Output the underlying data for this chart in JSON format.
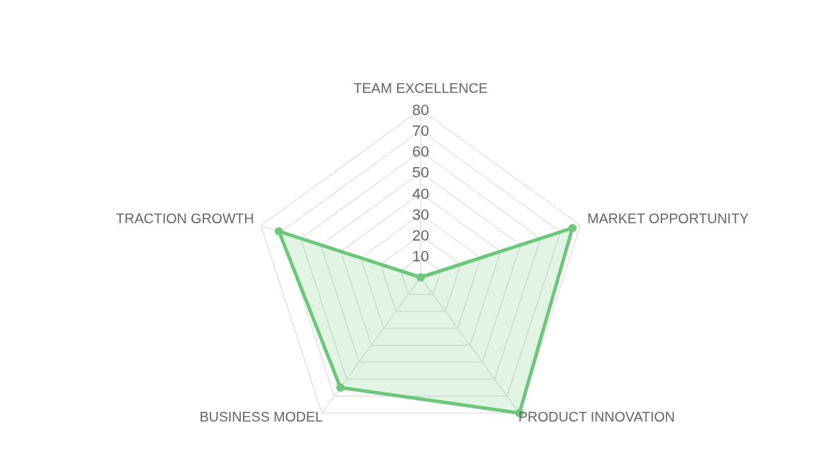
{
  "chart_data": {
    "type": "radar",
    "categories": [
      "TEAM EXCELLENCE",
      "MARKET OPPORTUNITY",
      "PRODUCT INNOVATION",
      "BUSINESS MODEL",
      "TRACTION GROWTH"
    ],
    "series": [
      {
        "color": "#6cc77a",
        "values": [
          0,
          76,
          80,
          65,
          71
        ]
      }
    ],
    "ylim": [
      0,
      80
    ],
    "yticks": [
      10,
      20,
      30,
      40,
      50,
      60,
      70,
      80
    ],
    "grid": true,
    "marker": "circle"
  }
}
